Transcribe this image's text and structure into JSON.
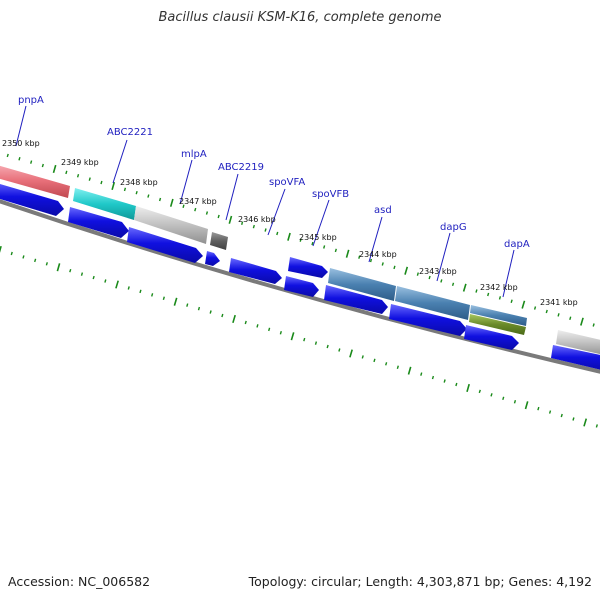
{
  "title": "Bacillus clausii KSM-K16, complete genome",
  "footer": {
    "accession": "Accession: NC_006582",
    "stats": "Topology: circular; Length: 4,303,871 bp; Genes: 4,192"
  },
  "ruler": [
    "2350 kbp",
    "2349 kbp",
    "2348 kbp",
    "2347 kbp",
    "2346 kbp",
    "2345 kbp",
    "2344 kbp",
    "2343 kbp",
    "2342 kbp",
    "2341 kbp"
  ],
  "gene_labels": [
    "pnpA",
    "ABC2221",
    "mlpA",
    "ABC2219",
    "spoVFA",
    "spoVFB",
    "asd",
    "dapG",
    "dapA"
  ],
  "colors": {
    "cds": "#1010e0",
    "pink": "#e8707a",
    "cyan": "#20c8c8",
    "light_gray": "#c0c0c0",
    "dark_gray": "#606060",
    "steel_blue": "#4a80b0",
    "olive": "#6a8a2a",
    "tick": "#1a8a1a",
    "backbone": "#7a7a7a",
    "label": "#1f1fbf"
  }
}
